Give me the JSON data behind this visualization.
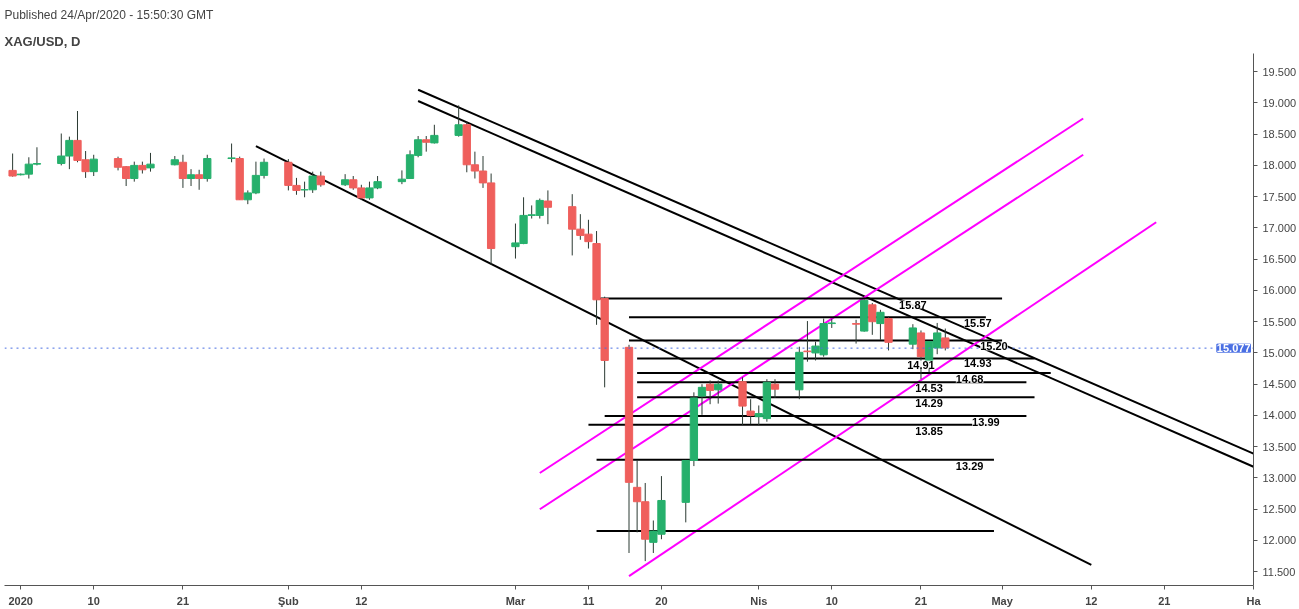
{
  "chart_data": {
    "type": "candlestick",
    "title": "XAG/USD, D",
    "subtitle": "Published 24/Apr/2020 - 15:50:30 GMT",
    "x": [
      "2019-12-31",
      "2020-01-01",
      "2020-01-02",
      "2020-01-03",
      "2020-01-06",
      "2020-01-07",
      "2020-01-08",
      "2020-01-09",
      "2020-01-10",
      "2020-01-13",
      "2020-01-14",
      "2020-01-15",
      "2020-01-16",
      "2020-01-17",
      "2020-01-20",
      "2020-01-21",
      "2020-01-22",
      "2020-01-23",
      "2020-01-24",
      "2020-01-27",
      "2020-01-28",
      "2020-01-29",
      "2020-01-30",
      "2020-01-31",
      "2020-02-03",
      "2020-02-04",
      "2020-02-05",
      "2020-02-06",
      "2020-02-07",
      "2020-02-10",
      "2020-02-11",
      "2020-02-12",
      "2020-02-13",
      "2020-02-14",
      "2020-02-17",
      "2020-02-18",
      "2020-02-19",
      "2020-02-20",
      "2020-02-21",
      "2020-02-24",
      "2020-02-25",
      "2020-02-26",
      "2020-02-27",
      "2020-02-28",
      "2020-03-02",
      "2020-03-03",
      "2020-03-04",
      "2020-03-05",
      "2020-03-06",
      "2020-03-09",
      "2020-03-10",
      "2020-03-11",
      "2020-03-12",
      "2020-03-13",
      "2020-03-16",
      "2020-03-17",
      "2020-03-18",
      "2020-03-19",
      "2020-03-20",
      "2020-03-23",
      "2020-03-24",
      "2020-03-25",
      "2020-03-26",
      "2020-03-27",
      "2020-03-30",
      "2020-03-31",
      "2020-04-01",
      "2020-04-02",
      "2020-04-03",
      "2020-04-06",
      "2020-04-07",
      "2020-04-08",
      "2020-04-09",
      "2020-04-10",
      "2020-04-13",
      "2020-04-14",
      "2020-04-15",
      "2020-04-16",
      "2020-04-17",
      "2020-04-20",
      "2020-04-21",
      "2020-04-22",
      "2020-04-23",
      "2020-04-24"
    ],
    "ohlc": [
      [
        17.92,
        18.19,
        17.82,
        17.83
      ],
      [
        17.85,
        17.87,
        17.84,
        17.86
      ],
      [
        17.86,
        18.13,
        17.79,
        18.02
      ],
      [
        18.02,
        18.29,
        18.0,
        18.03
      ],
      [
        18.03,
        18.51,
        18.0,
        18.15
      ],
      [
        18.15,
        18.46,
        17.94,
        18.4
      ],
      [
        18.4,
        18.87,
        18.05,
        18.08
      ],
      [
        18.09,
        18.23,
        17.8,
        17.9
      ],
      [
        17.9,
        18.17,
        17.83,
        18.1
      ],
      [
        18.11,
        18.14,
        17.92,
        17.97
      ],
      [
        17.98,
        17.99,
        17.67,
        17.79
      ],
      [
        17.79,
        18.06,
        17.74,
        18.0
      ],
      [
        18.0,
        18.06,
        17.87,
        17.93
      ],
      [
        17.96,
        18.2,
        17.9,
        18.02
      ],
      [
        18.01,
        18.15,
        18.0,
        18.09
      ],
      [
        18.05,
        18.17,
        17.64,
        17.79
      ],
      [
        17.79,
        17.94,
        17.67,
        17.85
      ],
      [
        17.85,
        17.93,
        17.61,
        17.79
      ],
      [
        17.79,
        18.17,
        17.74,
        18.11
      ],
      [
        18.11,
        18.35,
        18.05,
        18.12
      ],
      [
        18.11,
        18.14,
        17.45,
        17.45
      ],
      [
        17.45,
        17.6,
        17.38,
        17.56
      ],
      [
        17.56,
        18.06,
        17.54,
        17.84
      ],
      [
        17.84,
        18.11,
        17.79,
        18.05
      ],
      [
        18.05,
        18.1,
        17.6,
        17.68
      ],
      [
        17.68,
        17.8,
        17.53,
        17.6
      ],
      [
        17.61,
        17.74,
        17.49,
        17.61
      ],
      [
        17.61,
        17.9,
        17.56,
        17.83
      ],
      [
        17.83,
        17.9,
        17.66,
        17.69
      ],
      [
        17.69,
        17.86,
        17.67,
        17.77
      ],
      [
        17.77,
        17.83,
        17.61,
        17.64
      ],
      [
        17.64,
        17.69,
        17.45,
        17.48
      ],
      [
        17.48,
        17.74,
        17.45,
        17.64
      ],
      [
        17.64,
        17.83,
        17.62,
        17.74
      ],
      [
        17.74,
        17.92,
        17.7,
        17.78
      ],
      [
        17.79,
        18.24,
        17.79,
        18.17
      ],
      [
        18.16,
        18.47,
        18.13,
        18.41
      ],
      [
        18.41,
        18.47,
        18.22,
        18.37
      ],
      [
        18.36,
        18.65,
        18.35,
        18.48
      ],
      [
        18.48,
        18.96,
        18.46,
        18.65
      ],
      [
        18.65,
        18.7,
        17.89,
        18.01
      ],
      [
        18.01,
        18.22,
        17.79,
        17.91
      ],
      [
        17.91,
        18.15,
        17.64,
        17.72
      ],
      [
        17.72,
        17.87,
        16.41,
        16.67
      ],
      [
        16.7,
        17.07,
        16.51,
        16.76
      ],
      [
        16.75,
        17.49,
        16.74,
        17.2
      ],
      [
        17.2,
        17.36,
        17.15,
        17.21
      ],
      [
        17.2,
        17.47,
        17.15,
        17.44
      ],
      [
        17.43,
        17.6,
        17.06,
        17.33
      ],
      [
        17.34,
        17.54,
        16.56,
        16.98
      ],
      [
        16.98,
        17.22,
        16.81,
        16.88
      ],
      [
        16.9,
        17.13,
        16.67,
        16.78
      ],
      [
        16.75,
        16.95,
        15.45,
        15.85
      ],
      [
        15.87,
        15.9,
        14.45,
        14.88
      ],
      [
        15.09,
        15.13,
        11.8,
        12.93
      ],
      [
        12.85,
        13.28,
        12.13,
        12.62
      ],
      [
        12.62,
        12.92,
        11.67,
        12.02
      ],
      [
        11.97,
        12.32,
        11.8,
        12.15
      ],
      [
        12.1,
        13.03,
        12.02,
        12.64
      ],
      [
        12.61,
        13.29,
        12.29,
        13.28
      ],
      [
        13.28,
        14.37,
        13.19,
        14.28
      ],
      [
        14.31,
        14.5,
        14.01,
        14.45
      ],
      [
        14.5,
        14.56,
        14.18,
        14.4
      ],
      [
        14.41,
        14.56,
        14.19,
        14.5
      ],
      [
        14.54,
        14.61,
        13.85,
        14.15
      ],
      [
        14.07,
        14.26,
        13.86,
        14.0
      ],
      [
        13.98,
        14.16,
        13.84,
        14.03
      ],
      [
        13.95,
        14.58,
        13.9,
        14.53
      ],
      [
        14.5,
        14.58,
        14.28,
        14.42
      ],
      [
        14.41,
        15.1,
        14.26,
        15.01
      ],
      [
        15.03,
        15.51,
        14.86,
        15.02
      ],
      [
        15.0,
        15.18,
        14.88,
        15.11
      ],
      [
        14.97,
        15.55,
        14.94,
        15.47
      ],
      [
        15.47,
        15.54,
        15.4,
        15.48
      ],
      [
        15.47,
        15.53,
        15.15,
        15.46
      ],
      [
        15.35,
        15.86,
        15.34,
        15.84
      ],
      [
        15.77,
        15.8,
        15.29,
        15.5
      ],
      [
        15.47,
        15.69,
        15.21,
        15.65
      ],
      [
        15.55,
        15.59,
        15.04,
        15.17
      ],
      [
        15.14,
        15.46,
        15.06,
        15.4
      ],
      [
        15.32,
        15.36,
        14.58,
        14.94
      ],
      [
        14.87,
        15.18,
        14.69,
        15.18
      ],
      [
        15.08,
        15.48,
        14.98,
        15.32
      ],
      [
        15.24,
        15.39,
        15.04,
        15.08
      ]
    ],
    "colors": [
      "#ef5f5c",
      "#26b06c",
      "#26b06c",
      "#26b06c",
      "#26b06c",
      "#26b06c",
      "#ef5f5c",
      "#ef5f5c",
      "#26b06c",
      "#ef5f5c",
      "#ef5f5c",
      "#26b06c",
      "#ef5f5c",
      "#26b06c",
      "#26b06c",
      "#ef5f5c",
      "#26b06c",
      "#ef5f5c",
      "#26b06c",
      "#26b06c",
      "#ef5f5c",
      "#26b06c",
      "#26b06c",
      "#26b06c",
      "#ef5f5c",
      "#ef5f5c",
      "#26b06c",
      "#26b06c",
      "#ef5f5c",
      "#26b06c",
      "#ef5f5c",
      "#ef5f5c",
      "#26b06c",
      "#26b06c",
      "#26b06c",
      "#26b06c",
      "#26b06c",
      "#ef5f5c",
      "#26b06c",
      "#26b06c",
      "#ef5f5c",
      "#ef5f5c",
      "#ef5f5c",
      "#ef5f5c",
      "#26b06c",
      "#26b06c",
      "#26b06c",
      "#26b06c",
      "#ef5f5c",
      "#ef5f5c",
      "#ef5f5c",
      "#ef5f5c",
      "#ef5f5c",
      "#ef5f5c",
      "#ef5f5c",
      "#ef5f5c",
      "#ef5f5c",
      "#26b06c",
      "#26b06c",
      "#26b06c",
      "#26b06c",
      "#26b06c",
      "#ef5f5c",
      "#26b06c",
      "#ef5f5c",
      "#ef5f5c",
      "#26b06c",
      "#26b06c",
      "#ef5f5c",
      "#26b06c",
      "#ef5f5c",
      "#26b06c",
      "#26b06c",
      "#26b06c",
      "#ef5f5c",
      "#26b06c",
      "#ef5f5c",
      "#26b06c",
      "#ef5f5c",
      "#26b06c",
      "#ef5f5c",
      "#26b06c",
      "#26b06c",
      "#ef5f5c"
    ],
    "series": [
      {
        "type": "line",
        "color": "#000000",
        "x": [
          "2020-01-30",
          "2020-05-12"
        ],
        "values": [
          18.31,
          11.61
        ]
      },
      {
        "type": "line",
        "color": "#000000",
        "x": [
          "2020-02-19",
          "2020-06-01"
        ],
        "values": [
          19.21,
          13.39
        ]
      },
      {
        "type": "line",
        "color": "#000000",
        "x": [
          "2020-02-19",
          "2020-06-01"
        ],
        "values": [
          19.03,
          13.18
        ]
      },
      {
        "type": "line",
        "color": "#ff00ff",
        "x": [
          "2020-03-05",
          "2020-05-11"
        ],
        "values": [
          13.08,
          18.75
        ]
      },
      {
        "type": "line",
        "color": "#ff00ff",
        "x": [
          "2020-03-05",
          "2020-05-11"
        ],
        "values": [
          12.5,
          18.17
        ]
      },
      {
        "type": "line",
        "color": "#ff00ff",
        "x": [
          "2020-03-16",
          "2020-05-20"
        ],
        "values": [
          11.43,
          17.09
        ]
      },
      {
        "type": "line",
        "color": "#000000",
        "x": [
          "2020-03-12",
          "2020-05-01"
        ],
        "values": [
          15.87,
          15.87
        ]
      },
      {
        "type": "line",
        "color": "#000000",
        "x": [
          "2020-03-16",
          "2020-04-29"
        ],
        "values": [
          15.57,
          15.57
        ]
      },
      {
        "type": "line",
        "color": "#000000",
        "x": [
          "2020-03-16",
          "2020-05-01"
        ],
        "values": [
          15.2,
          15.2
        ]
      },
      {
        "type": "line",
        "color": "#000000",
        "x": [
          "2020-03-17",
          "2020-05-05"
        ],
        "values": [
          14.91,
          14.91
        ]
      },
      {
        "type": "line",
        "color": "#000000",
        "x": [
          "2020-03-17",
          "2020-05-07"
        ],
        "values": [
          14.68,
          14.68
        ]
      },
      {
        "type": "line",
        "color": "#000000",
        "x": [
          "2020-03-17",
          "2020-05-04"
        ],
        "values": [
          14.53,
          14.53
        ]
      },
      {
        "type": "line",
        "color": "#000000",
        "x": [
          "2020-03-17",
          "2020-05-05"
        ],
        "values": [
          14.29,
          14.29
        ]
      },
      {
        "type": "line",
        "color": "#000000",
        "x": [
          "2020-03-13",
          "2020-05-04"
        ],
        "values": [
          13.99,
          13.99
        ]
      },
      {
        "type": "line",
        "color": "#000000",
        "x": [
          "2020-03-11",
          "2020-04-30"
        ],
        "values": [
          13.85,
          13.85
        ]
      },
      {
        "type": "line",
        "color": "#000000",
        "x": [
          "2020-03-12",
          "2020-04-30"
        ],
        "values": [
          13.29,
          13.29
        ]
      },
      {
        "type": "line",
        "color": "#000000",
        "x": [
          "2020-03-12",
          "2020-04-30"
        ],
        "values": [
          12.15,
          12.15
        ]
      }
    ],
    "annotations": [
      {
        "text": "15.87",
        "x": "2020-04-20",
        "y": 15.87
      },
      {
        "text": "15.57",
        "x": "2020-04-28",
        "y": 15.57
      },
      {
        "text": "15.20",
        "x": "2020-04-30",
        "y": 15.2
      },
      {
        "text": "14.93",
        "x": "2020-04-28",
        "y": 14.93
      },
      {
        "text": "14.91",
        "x": "2020-04-21",
        "y": 14.91
      },
      {
        "text": "14.68",
        "x": "2020-04-27",
        "y": 14.68
      },
      {
        "text": "14.53",
        "x": "2020-04-22",
        "y": 14.53
      },
      {
        "text": "14.29",
        "x": "2020-04-22",
        "y": 14.29
      },
      {
        "text": "13.99",
        "x": "2020-04-29",
        "y": 13.99
      },
      {
        "text": "13.85",
        "x": "2020-04-22",
        "y": 13.85
      },
      {
        "text": "13.29",
        "x": "2020-04-27",
        "y": 13.29
      }
    ],
    "ref_lines": [
      {
        "axis": "y",
        "value": 15.077,
        "label": "15.077",
        "color": "#4a6fe3",
        "line_style": "dotted"
      }
    ],
    "xlim": [
      "2019-12-30",
      "2020-06-01"
    ],
    "xticks": [
      {
        "value": "2020-01-01",
        "label": "2020"
      },
      {
        "value": "2020-01-10",
        "label": "10"
      },
      {
        "value": "2020-01-21",
        "label": "21"
      },
      {
        "value": "2020-02-03",
        "label": "Şub"
      },
      {
        "value": "2020-02-12",
        "label": "12"
      },
      {
        "value": "2020-03-02",
        "label": "Mar"
      },
      {
        "value": "2020-03-11",
        "label": "11"
      },
      {
        "value": "2020-03-20",
        "label": "20"
      },
      {
        "value": "2020-04-01",
        "label": "Nis"
      },
      {
        "value": "2020-04-10",
        "label": "10"
      },
      {
        "value": "2020-04-21",
        "label": "21"
      },
      {
        "value": "2020-05-01",
        "label": "May"
      },
      {
        "value": "2020-05-12",
        "label": "12"
      },
      {
        "value": "2020-05-21",
        "label": "21"
      },
      {
        "value": "2020-06-01",
        "label": "Ha"
      }
    ],
    "ylim": [
      11.28,
      19.79
    ],
    "yticks": [
      {
        "value": 11.5,
        "label": "11.500"
      },
      {
        "value": 12,
        "label": "12.000"
      },
      {
        "value": 12.5,
        "label": "12.500"
      },
      {
        "value": 13,
        "label": "13.000"
      },
      {
        "value": 13.5,
        "label": "13.500"
      },
      {
        "value": 14,
        "label": "14.000"
      },
      {
        "value": 14.5,
        "label": "14.500"
      },
      {
        "value": 15,
        "label": "15.000"
      },
      {
        "value": 15.5,
        "label": "15.500"
      },
      {
        "value": 16,
        "label": "16.000"
      },
      {
        "value": 16.5,
        "label": "16.500"
      },
      {
        "value": 17,
        "label": "17.000"
      },
      {
        "value": 17.5,
        "label": "17.500"
      },
      {
        "value": 18,
        "label": "18.000"
      },
      {
        "value": 18.5,
        "label": "18.500"
      },
      {
        "value": 19,
        "label": "19.000"
      },
      {
        "value": 19.5,
        "label": "19.500"
      }
    ],
    "grid": false
  }
}
